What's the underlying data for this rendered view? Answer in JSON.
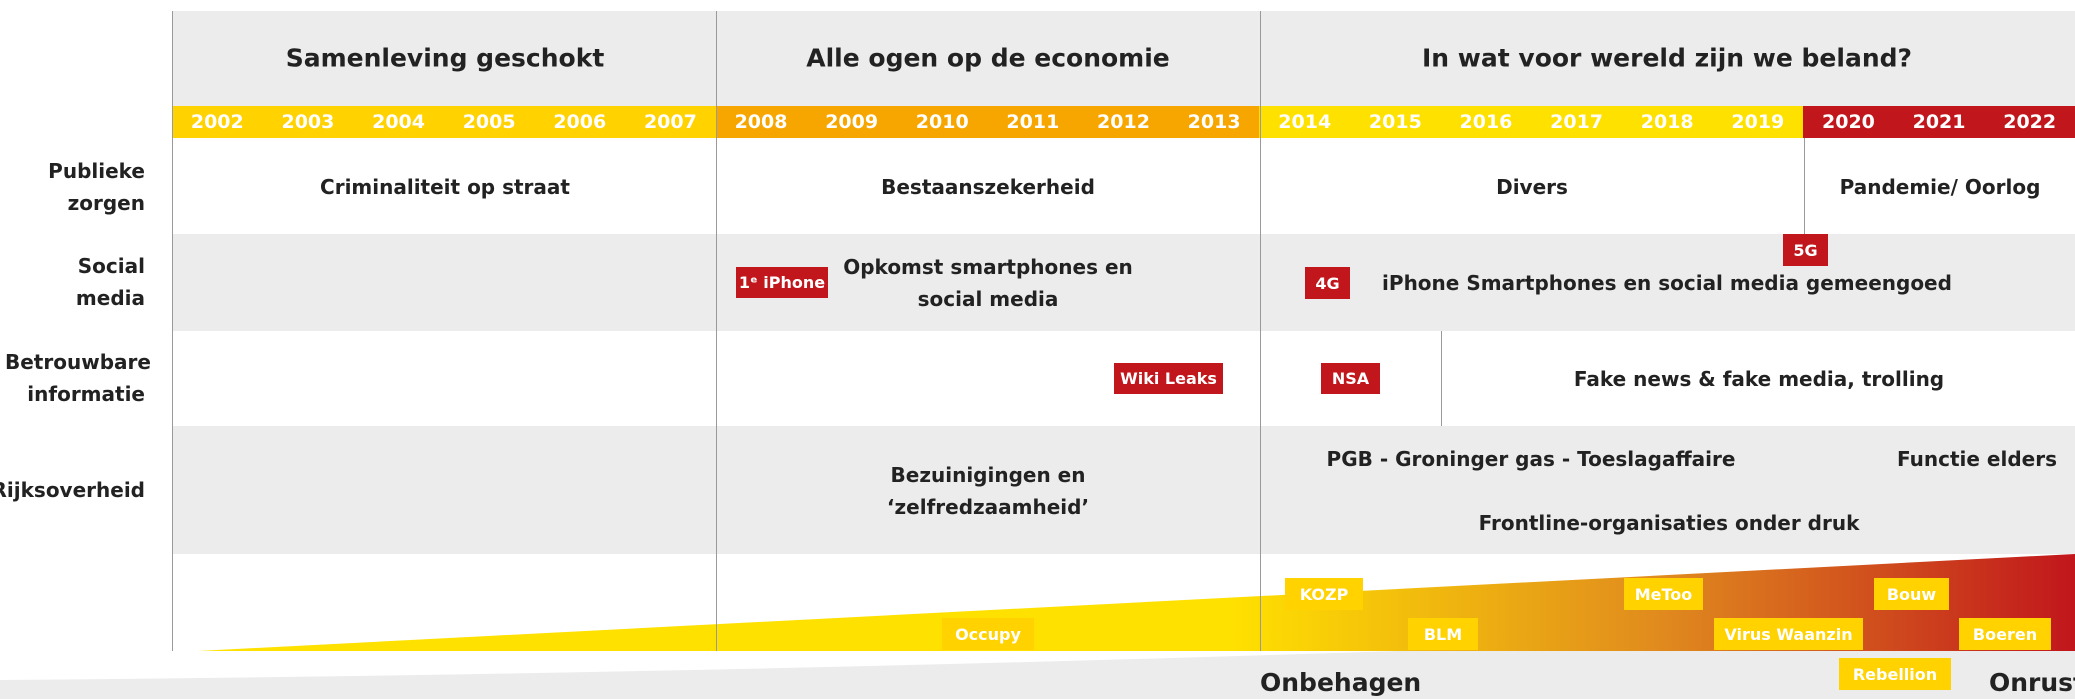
{
  "periods": [
    {
      "title": "Samenleving geschokt"
    },
    {
      "title": "Alle ogen op de economie"
    },
    {
      "title": "In wat voor wereld zijn we beland?"
    }
  ],
  "year_groups": [
    {
      "color": "#ffd200",
      "years": [
        "2002",
        "2003",
        "2004",
        "2005",
        "2006",
        "2007"
      ]
    },
    {
      "color": "#f7a600",
      "years": [
        "2008",
        "2009",
        "2010",
        "2011",
        "2012",
        "2013"
      ]
    },
    {
      "color": "#ffe100",
      "years": [
        "2014",
        "2015",
        "2016",
        "2017",
        "2018",
        "2019"
      ]
    },
    {
      "color": "#c1161c",
      "years": [
        "2020",
        "2021",
        "2022"
      ]
    }
  ],
  "rows": [
    {
      "label": "Publieke zorgen",
      "items": [
        "Criminaliteit op straat",
        "Bestaanszekerheid",
        "Divers",
        "Pandemie/ Oorlog"
      ]
    },
    {
      "label": "Social media",
      "items": [
        "Opkomst smartphones en social media",
        "iPhone Smartphones en social media gemeengoed"
      ],
      "tags": [
        "1ᵉ iPhone",
        "4G",
        "5G"
      ]
    },
    {
      "label": "Betrouwbare informatie",
      "items": [
        "Fake news & fake media, trolling"
      ],
      "tags": [
        "Wiki Leaks",
        "NSA"
      ]
    },
    {
      "label": "Rijksoverheid",
      "items": [
        "Bezuinigingen en ‘zelfredzaamheid’",
        "PGB - Groninger gas - Toeslagaffaire",
        "Functie elders",
        "Frontline-organisaties onder druk"
      ]
    }
  ],
  "unrest_tags": [
    "Occupy",
    "KOZP",
    "BLM",
    "MeToo",
    "Virus Waanzin",
    "Bouw",
    "Boeren",
    "Rebellion"
  ],
  "bottom_labels": [
    "Onbehagen",
    "Onrust"
  ]
}
